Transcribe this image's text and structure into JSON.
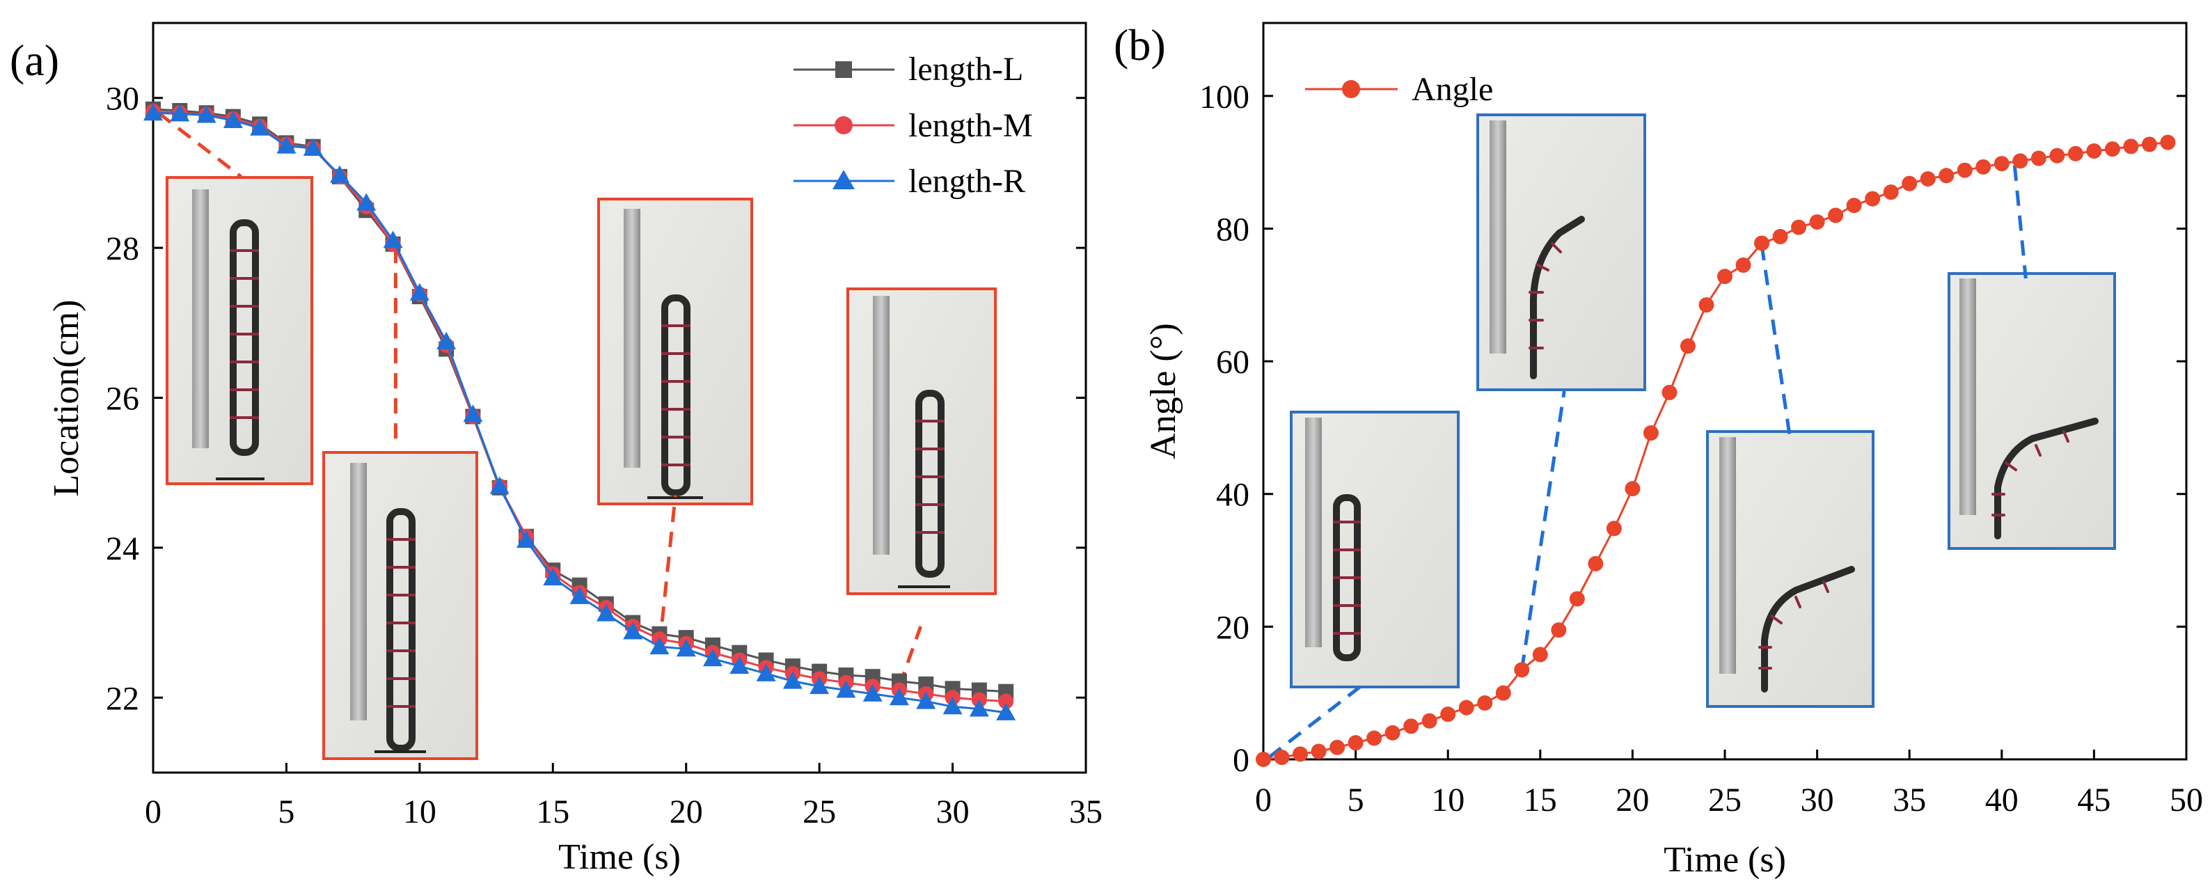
{
  "chart_data": [
    {
      "id": "a",
      "type": "line",
      "panel_label": "(a)",
      "xlabel": "Time (s)",
      "ylabel": "Location(cm)",
      "xlim": [
        0,
        35
      ],
      "ylim": [
        21,
        31
      ],
      "xticks": [
        0,
        5,
        10,
        15,
        20,
        25,
        30,
        35
      ],
      "yticks": [
        22,
        24,
        26,
        28,
        30
      ],
      "legend_position": "top-right",
      "x": [
        0,
        1,
        2,
        3,
        4,
        5,
        6,
        7,
        8,
        9,
        10,
        11,
        12,
        13,
        14,
        15,
        16,
        17,
        18,
        19,
        20,
        21,
        22,
        23,
        24,
        25,
        26,
        27,
        28,
        29,
        30,
        31,
        32
      ],
      "series": [
        {
          "name": "length-L",
          "color": "#555555",
          "marker": "square",
          "values": [
            29.85,
            29.83,
            29.8,
            29.75,
            29.65,
            29.4,
            29.35,
            28.95,
            28.5,
            28.05,
            27.35,
            26.65,
            25.75,
            24.8,
            24.15,
            23.7,
            23.5,
            23.25,
            23.0,
            22.85,
            22.8,
            22.7,
            22.6,
            22.5,
            22.42,
            22.35,
            22.3,
            22.28,
            22.22,
            22.18,
            22.12,
            22.1,
            22.08
          ]
        },
        {
          "name": "length-M",
          "color": "#e8424a",
          "marker": "circle",
          "values": [
            29.82,
            29.8,
            29.78,
            29.72,
            29.62,
            29.38,
            29.33,
            28.95,
            28.55,
            28.05,
            27.38,
            26.7,
            25.75,
            24.82,
            24.15,
            23.65,
            23.4,
            23.2,
            22.95,
            22.78,
            22.72,
            22.6,
            22.5,
            22.4,
            22.32,
            22.25,
            22.2,
            22.15,
            22.1,
            22.05,
            22.0,
            21.97,
            21.95
          ]
        },
        {
          "name": "length-R",
          "color": "#1f6fd8",
          "marker": "triangle",
          "values": [
            29.8,
            29.79,
            29.77,
            29.7,
            29.6,
            29.36,
            29.33,
            28.97,
            28.6,
            28.1,
            27.4,
            26.75,
            25.78,
            24.82,
            24.1,
            23.6,
            23.35,
            23.12,
            22.88,
            22.68,
            22.65,
            22.52,
            22.42,
            22.32,
            22.22,
            22.15,
            22.1,
            22.05,
            22.0,
            21.95,
            21.88,
            21.85,
            21.8
          ]
        }
      ],
      "connectors": [
        {
          "from": [
            0.2,
            29.8
          ],
          "to": [
            3.3,
            28.95
          ],
          "color": "#e8452b"
        },
        {
          "from": [
            9.1,
            28.0
          ],
          "to": [
            9.1,
            25.4
          ],
          "color": "#e8452b"
        },
        {
          "from": [
            19.0,
            22.68
          ],
          "to": [
            19.6,
            24.7
          ],
          "color": "#e8452b"
        },
        {
          "from": [
            28.0,
            22.15
          ],
          "to": [
            28.8,
            22.95
          ],
          "color": "#e8452b"
        }
      ],
      "insets_count": 4,
      "inset_frame_color": "#e8452b"
    },
    {
      "id": "b",
      "type": "line",
      "panel_label": "(b)",
      "xlabel": "Time (s)",
      "ylabel": "Angle (°)",
      "xlim": [
        0,
        50
      ],
      "ylim": [
        0,
        111
      ],
      "xticks": [
        0,
        5,
        10,
        15,
        20,
        25,
        30,
        35,
        40,
        45,
        50
      ],
      "yticks": [
        0,
        20,
        40,
        60,
        80,
        100
      ],
      "legend_position": "top-left",
      "x": [
        0,
        1,
        2,
        3,
        4,
        5,
        6,
        7,
        8,
        9,
        10,
        11,
        12,
        13,
        14,
        15,
        16,
        17,
        18,
        19,
        20,
        21,
        22,
        23,
        24,
        25,
        26,
        27,
        28,
        29,
        30,
        31,
        32,
        33,
        34,
        35,
        36,
        37,
        38,
        39,
        40,
        41,
        42,
        43,
        44,
        45,
        46,
        47,
        48,
        49
      ],
      "series": [
        {
          "name": "Angle",
          "color": "#e8452b",
          "marker": "circle",
          "values": [
            0,
            0.3,
            0.8,
            1.2,
            1.8,
            2.5,
            3.2,
            4.0,
            5.0,
            5.8,
            6.8,
            7.8,
            8.5,
            10,
            13.5,
            15.8,
            19.5,
            24.2,
            29.5,
            34.8,
            40.8,
            49.2,
            55.3,
            62.3,
            68.5,
            72.8,
            74.5,
            77.8,
            78.8,
            80.2,
            81,
            82,
            83.5,
            84.5,
            85.5,
            86.8,
            87.5,
            88,
            88.8,
            89.3,
            89.8,
            90.2,
            90.6,
            91,
            91.3,
            91.7,
            92,
            92.4,
            92.7,
            93.0
          ]
        }
      ],
      "connectors": [
        {
          "from": [
            0.3,
            0.3
          ],
          "to": [
            5.5,
            11.5
          ],
          "color": "#1f6fd8"
        },
        {
          "from": [
            14.0,
            13.5
          ],
          "to": [
            16.3,
            55.5
          ],
          "color": "#1f6fd8"
        },
        {
          "from": [
            27.0,
            77.5
          ],
          "to": [
            28.5,
            49.0
          ],
          "color": "#1f6fd8"
        },
        {
          "from": [
            40.7,
            89.5
          ],
          "to": [
            41.3,
            72.5
          ],
          "color": "#1f6fd8"
        }
      ],
      "insets_count": 4,
      "inset_frame_color": "#2f6fc0"
    }
  ]
}
